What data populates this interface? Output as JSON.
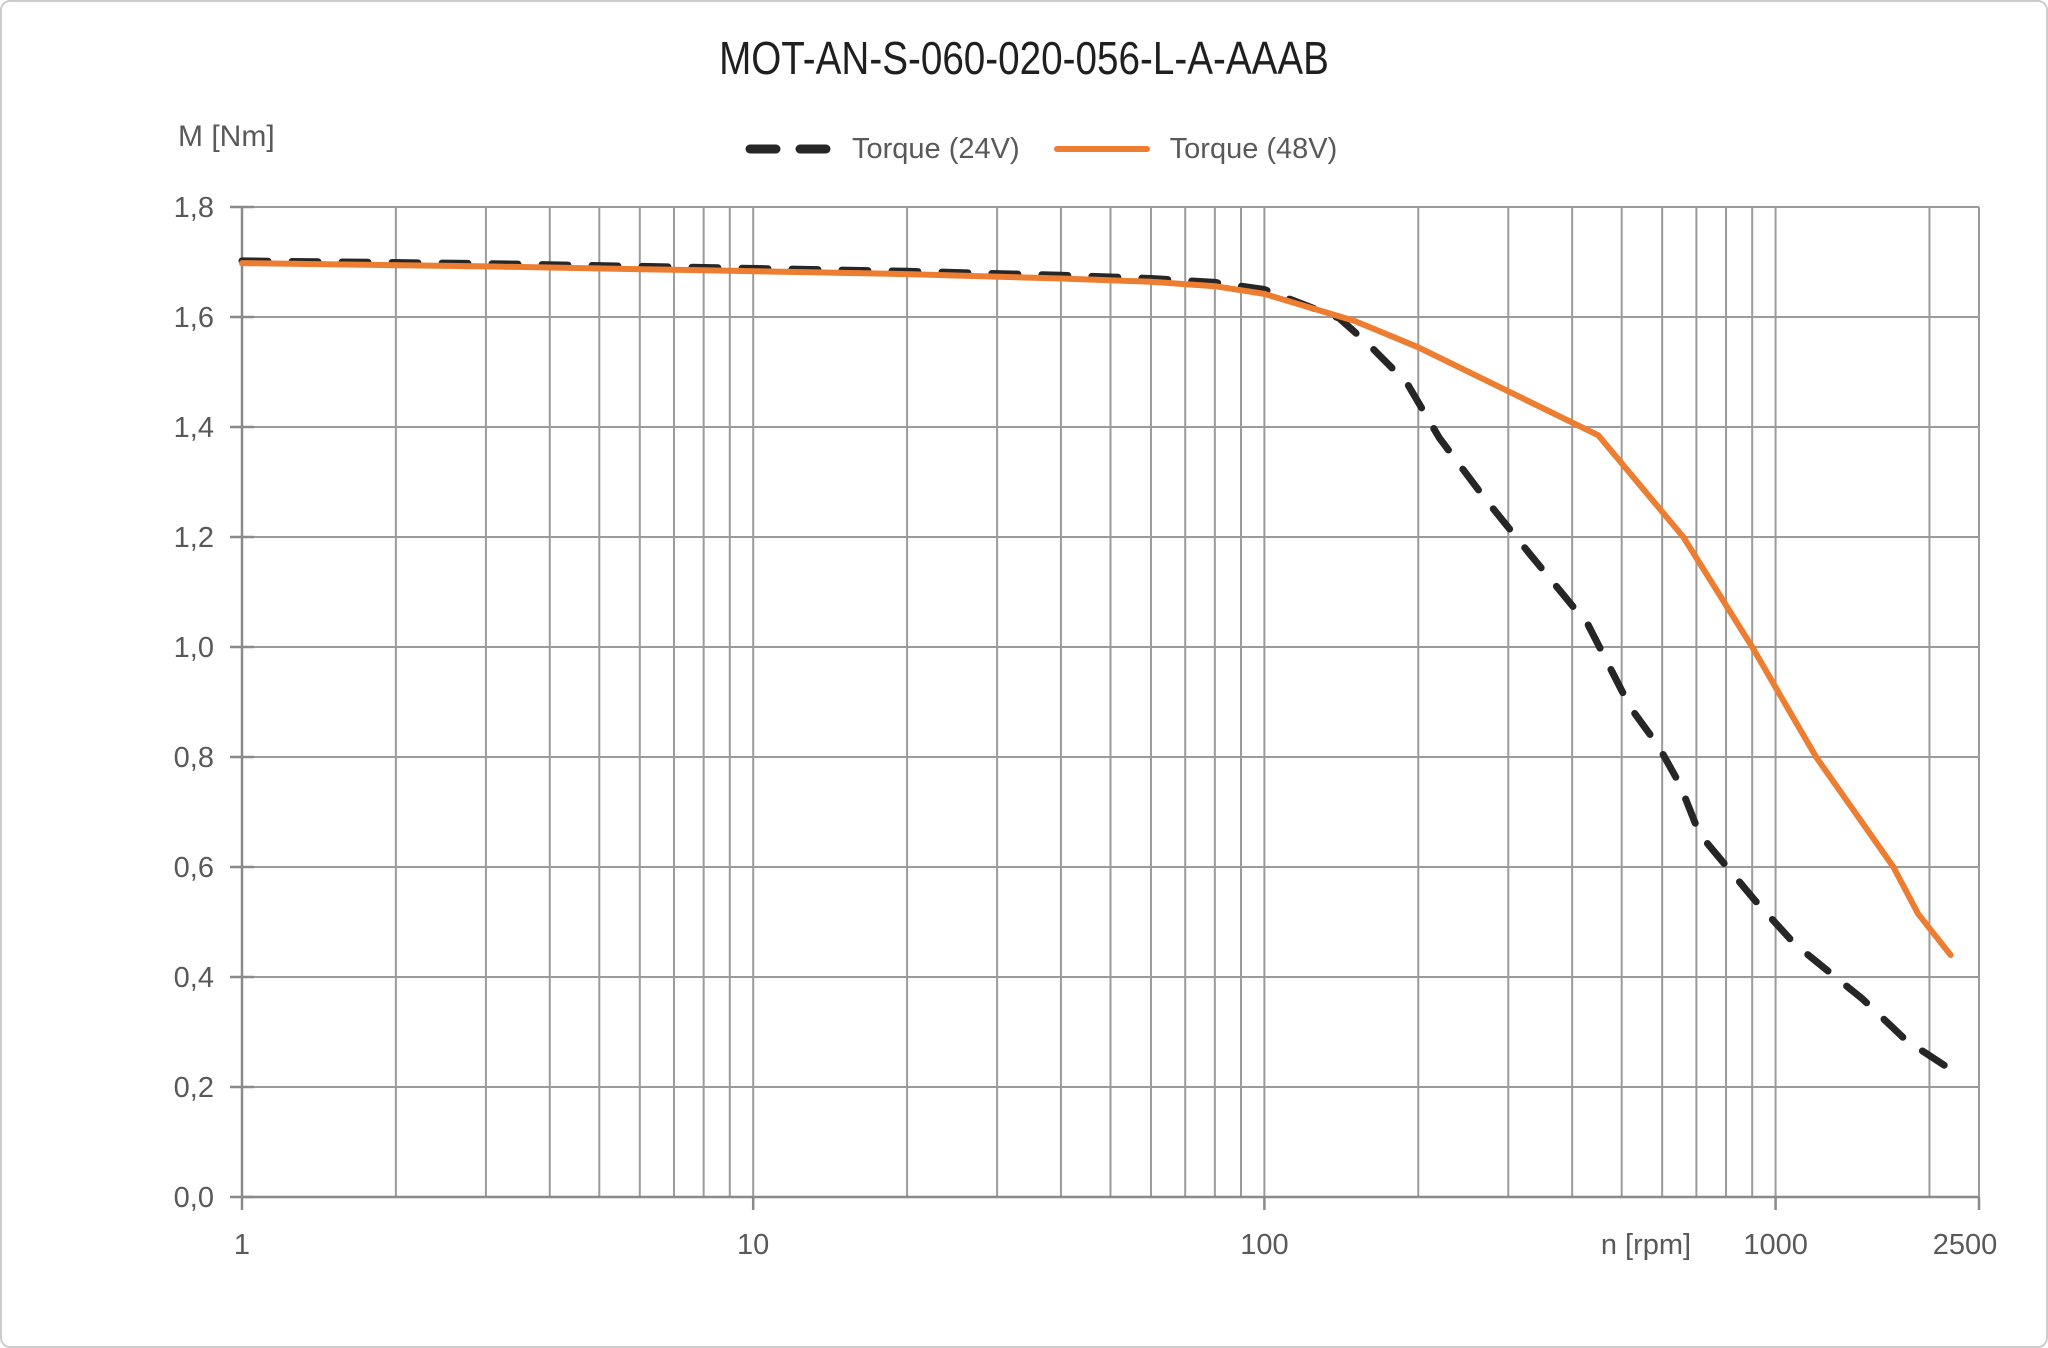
{
  "chart_data": {
    "type": "line",
    "title": "MOT-AN-S-060-020-056-L-A-AAAB",
    "xlabel": "n [rpm]",
    "ylabel": "M [Nm]",
    "x_scale": "log",
    "xlim": [
      1,
      2500
    ],
    "ylim": [
      0.0,
      1.8
    ],
    "x_major_ticks": [
      1,
      10,
      100,
      1000,
      2500
    ],
    "x_tick_labels": [
      "1",
      "10",
      "100",
      "1000",
      "2500"
    ],
    "y_ticks": [
      0.0,
      0.2,
      0.4,
      0.6,
      0.8,
      1.0,
      1.2,
      1.4,
      1.6,
      1.8
    ],
    "y_tick_labels": [
      "0,0",
      "0,2",
      "0,4",
      "0,6",
      "0,8",
      "1,0",
      "1,2",
      "1,4",
      "1,6",
      "1,8"
    ],
    "decimal_separator": ",",
    "grid": true,
    "grid_minor_log": true,
    "legend_position": "top-center",
    "colors": {
      "torque_24v": "#262626",
      "torque_48v": "#ED7D31",
      "grid": "#9b9b9b",
      "axis": "#8a8a8a",
      "tick_text": "#595959",
      "title_text": "#1f1f1f"
    },
    "series": [
      {
        "name": "Torque (24V)",
        "style": "dashed",
        "color": "#262626",
        "points": [
          [
            1,
            1.702
          ],
          [
            3,
            1.697
          ],
          [
            8,
            1.69
          ],
          [
            20,
            1.683
          ],
          [
            40,
            1.676
          ],
          [
            60,
            1.67
          ],
          [
            80,
            1.663
          ],
          [
            100,
            1.65
          ],
          [
            140,
            1.598
          ],
          [
            160,
            1.55
          ],
          [
            190,
            1.48
          ],
          [
            220,
            1.38
          ],
          [
            270,
            1.27
          ],
          [
            330,
            1.17
          ],
          [
            430,
            1.04
          ],
          [
            520,
            0.89
          ],
          [
            590,
            0.82
          ],
          [
            650,
            0.75
          ],
          [
            710,
            0.66
          ],
          [
            910,
            0.54
          ],
          [
            1090,
            0.46
          ],
          [
            1270,
            0.41
          ],
          [
            1480,
            0.36
          ],
          [
            1800,
            0.285
          ],
          [
            2200,
            0.232
          ]
        ]
      },
      {
        "name": "Torque (48V)",
        "style": "solid",
        "color": "#ED7D31",
        "points": [
          [
            1,
            1.698
          ],
          [
            3,
            1.692
          ],
          [
            8,
            1.685
          ],
          [
            20,
            1.678
          ],
          [
            40,
            1.67
          ],
          [
            60,
            1.664
          ],
          [
            80,
            1.656
          ],
          [
            100,
            1.642
          ],
          [
            150,
            1.593
          ],
          [
            200,
            1.545
          ],
          [
            300,
            1.465
          ],
          [
            450,
            1.385
          ],
          [
            660,
            1.2
          ],
          [
            900,
            1.0
          ],
          [
            1200,
            0.8
          ],
          [
            1700,
            0.6
          ],
          [
            1900,
            0.515
          ],
          [
            2200,
            0.44
          ]
        ]
      }
    ]
  }
}
